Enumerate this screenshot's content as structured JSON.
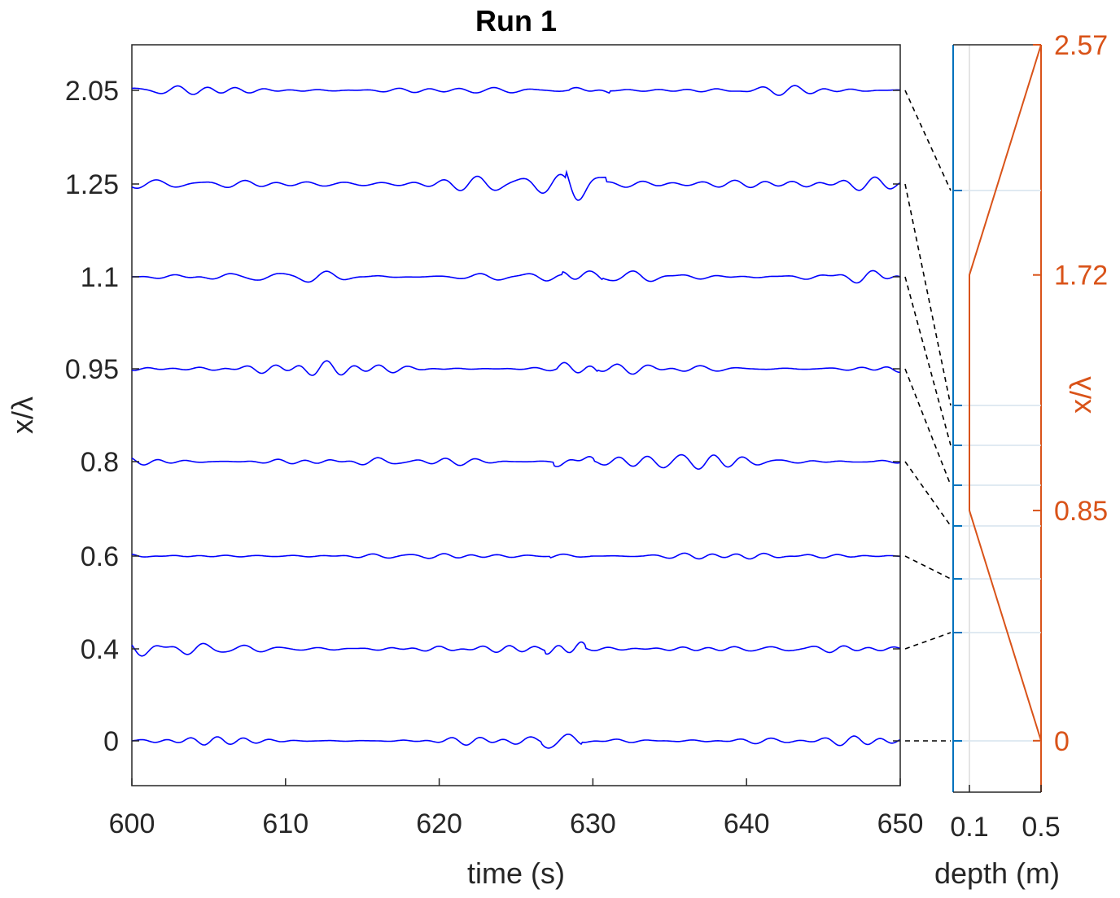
{
  "chart_data": [
    {
      "type": "line",
      "title": "Run 1",
      "xlabel": "time (s)",
      "ylabel": "x/λ",
      "xlim": [
        600,
        650
      ],
      "x_ticks": [
        "600",
        "610",
        "620",
        "630",
        "640",
        "650"
      ],
      "y_ticks": [
        "0",
        "0.4",
        "0.6",
        "0.8",
        "0.95",
        "1.1",
        "1.25",
        "2.05"
      ],
      "grid": false,
      "line_color": "#0000FF",
      "series_note_levels": [
        "0",
        "0.4",
        "0.6",
        "0.8",
        "0.95",
        "1.1",
        "1.25",
        "2.05"
      ]
    },
    {
      "type": "line",
      "xlabel": "depth (m)",
      "x_ticks": [
        "0.1",
        "0.5"
      ],
      "y_label_right": "x/λ",
      "y_ticks_right": [
        "0",
        "0.85",
        "1.72",
        "2.57"
      ],
      "ylim": [
        -0.19,
        2.57
      ],
      "series": [
        {
          "x": [
            0.5,
            0.1,
            0.1,
            0.5
          ],
          "y": [
            0,
            0.85,
            1.72,
            2.57
          ],
          "color": "#D95319"
        }
      ],
      "gauge_positions": [
        0,
        0.4,
        0.6,
        0.8,
        0.95,
        1.1,
        1.25,
        2.05
      ],
      "gauge_color": "#0072BD"
    }
  ]
}
